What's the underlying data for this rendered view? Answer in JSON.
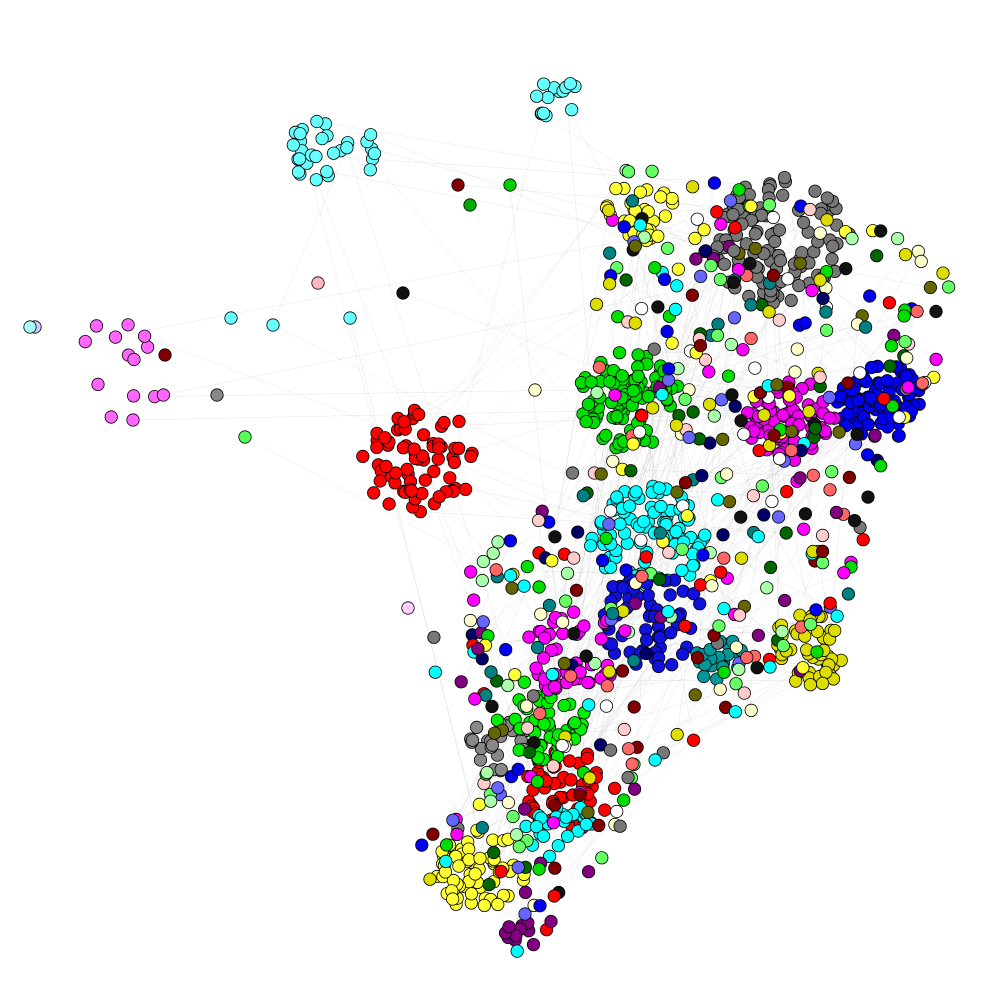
{
  "diagram": {
    "type": "network-graph",
    "title": "",
    "background": "#ffffff",
    "edge_color": "#9a9a9a",
    "node_outline": "#000000",
    "clusters": [
      {
        "name": "cyan-north",
        "color": "#66ffff"
      },
      {
        "name": "cyan-north-east",
        "color": "#66ffff"
      },
      {
        "name": "magenta-west",
        "color": "#ff66ff"
      },
      {
        "name": "red-west",
        "color": "#ff0000"
      },
      {
        "name": "green-center",
        "color": "#00dd00"
      },
      {
        "name": "cyan-center",
        "color": "#00ffff"
      },
      {
        "name": "gray-north-east",
        "color": "#777777"
      },
      {
        "name": "yellow-north",
        "color": "#ffff33"
      },
      {
        "name": "blue-east",
        "color": "#0000ee"
      },
      {
        "name": "magenta-east",
        "color": "#ee00ee"
      },
      {
        "name": "blue-south-east",
        "color": "#1111dd"
      },
      {
        "name": "olive-yellow-south-east",
        "color": "#dddd00"
      },
      {
        "name": "red-south",
        "color": "#ff0000"
      },
      {
        "name": "yellow-south",
        "color": "#ffff33"
      },
      {
        "name": "purple-south-tail",
        "color": "#800080"
      },
      {
        "name": "gray-south",
        "color": "#888888"
      },
      {
        "name": "green-south",
        "color": "#00ee00"
      },
      {
        "name": "magenta-south",
        "color": "#ff00ff"
      },
      {
        "name": "cyan-south",
        "color": "#00ffff"
      },
      {
        "name": "teal-east",
        "color": "#009999"
      }
    ],
    "palette": [
      "#ff0000",
      "#00dd00",
      "#0000ee",
      "#ffff33",
      "#00ffff",
      "#ff00ff",
      "#777777",
      "#dddd00",
      "#006600",
      "#800000",
      "#000066",
      "#ff6666",
      "#66ff66",
      "#6666ff",
      "#aaffaa",
      "#ffcccc",
      "#ffffcc",
      "#800080",
      "#008080",
      "#111111",
      "#ffffff",
      "#666600"
    ]
  }
}
